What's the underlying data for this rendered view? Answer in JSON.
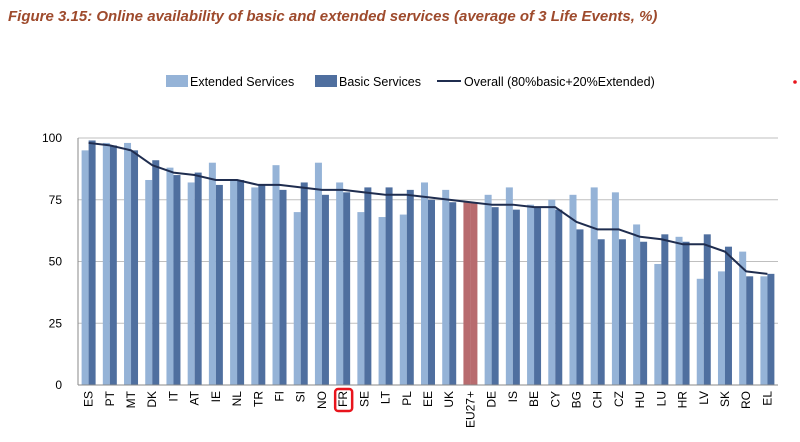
{
  "figure": {
    "title": "Figure 3.15: Online availability of basic and extended services (average of 3 Life Events, %)"
  },
  "chart_data": {
    "type": "bar",
    "title": "Figure 3.15: Online availability of basic and extended services (average of 3 Life Events, %)",
    "xlabel": "",
    "ylabel": "",
    "ylim": [
      0,
      100
    ],
    "yticks": [
      "0",
      "25",
      "50",
      "75",
      "100"
    ],
    "grid": true,
    "legend_position": "top",
    "categories": [
      "ES",
      "PT",
      "MT",
      "DK",
      "IT",
      "AT",
      "IE",
      "NL",
      "TR",
      "FI",
      "SI",
      "NO",
      "FR",
      "SE",
      "LT",
      "PL",
      "EE",
      "UK",
      "EU27+",
      "DE",
      "IS",
      "BE",
      "CY",
      "BG",
      "CH",
      "CZ",
      "HU",
      "LU",
      "HR",
      "LV",
      "SK",
      "RO",
      "EL"
    ],
    "highlight_category": "EU27+",
    "boxed_category": "FR",
    "series": [
      {
        "name": "Extended Services",
        "type": "bar",
        "color": "#95b3d7",
        "values": [
          95,
          98,
          98,
          83,
          88,
          82,
          90,
          83,
          80,
          89,
          70,
          90,
          82,
          70,
          68,
          69,
          82,
          79,
          74,
          77,
          80,
          73,
          75,
          77,
          80,
          78,
          65,
          49,
          60,
          43,
          46,
          54,
          44
        ]
      },
      {
        "name": "Basic Services",
        "type": "bar",
        "color": "#4f6f9f",
        "values": [
          99,
          97,
          95,
          91,
          85,
          86,
          81,
          83,
          81,
          79,
          82,
          77,
          78,
          80,
          80,
          79,
          75,
          74,
          74,
          72,
          71,
          72,
          71,
          63,
          59,
          59,
          58,
          61,
          58,
          61,
          56,
          44,
          45
        ]
      },
      {
        "name": "Overall (80%basic+20%Extended)",
        "type": "line",
        "color": "#1f2d4f",
        "values": [
          98,
          97,
          95,
          89,
          86,
          85,
          83,
          83,
          81,
          81,
          80,
          79,
          79,
          78,
          77,
          77,
          76,
          75,
          74,
          73,
          73,
          72,
          72,
          66,
          63,
          63,
          60,
          59,
          57,
          57,
          54,
          46,
          45
        ]
      }
    ],
    "highlight_color": "#b86b6e",
    "frame_color": "#888888",
    "grid_color": "#bfbfbf",
    "box_color": "#e8141c",
    "dot_color": "#e8141c"
  }
}
